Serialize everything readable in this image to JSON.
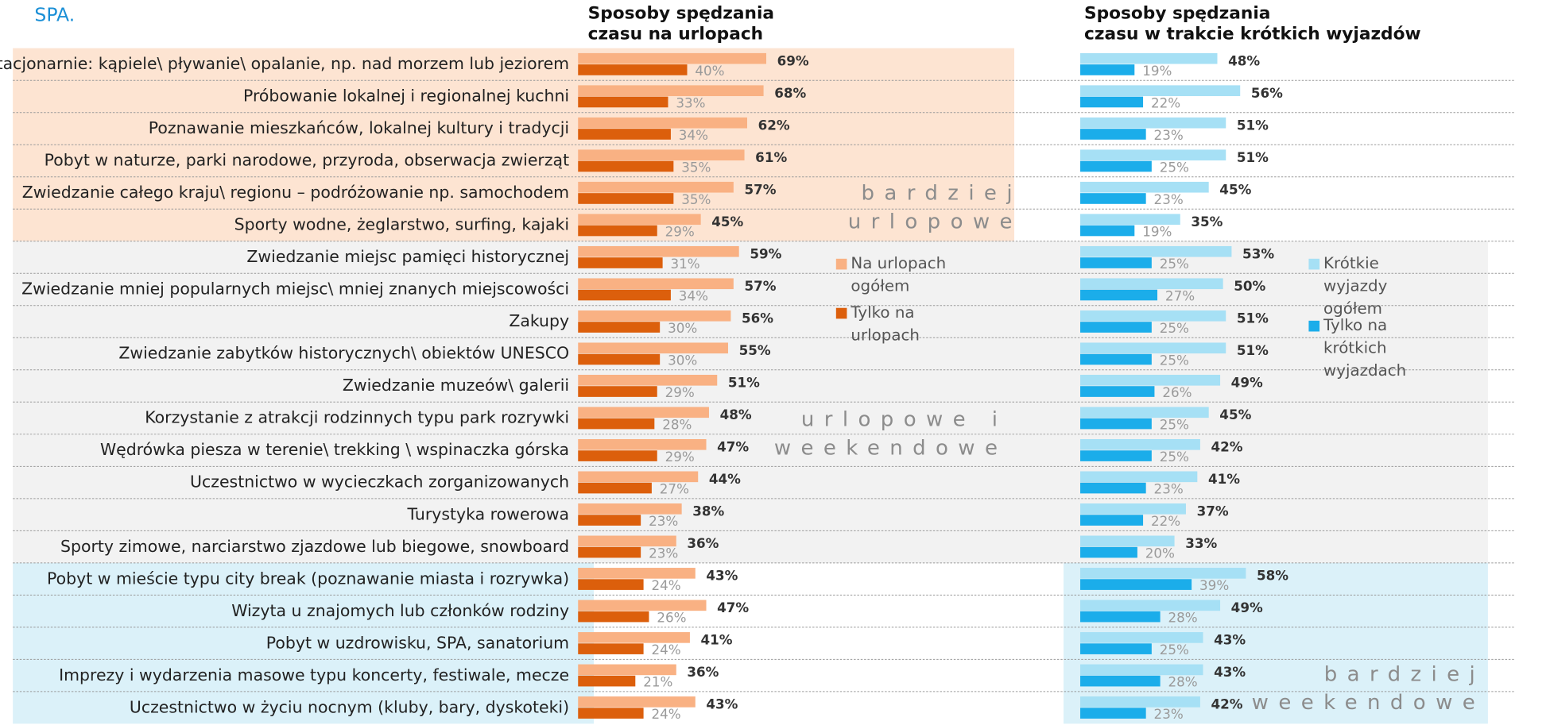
{
  "header": "SPA.",
  "annotations": [
    "bardziej urlopowe",
    "urlopowe i weekendowe",
    "bardziej weekendowe"
  ],
  "chart_data": [
    {
      "type": "bar",
      "orientation": "horizontal",
      "title": "Sposoby spędzania\nczasu na urlopach",
      "xlim": [
        0,
        100
      ],
      "categories": [
        "Stacjonarnie: kąpiele\\ pływanie\\ opalanie, np. nad morzem lub jeziorem",
        "Próbowanie lokalnej i regionalnej kuchni",
        "Poznawanie mieszkańców, lokalnej kultury i tradycji",
        "Pobyt w naturze, parki narodowe, przyroda, obserwacja zwierząt",
        "Zwiedzanie całego kraju\\ regionu – podróżowanie np. samochodem",
        "Sporty wodne, żeglarstwo, surfing, kajaki",
        "Zwiedzanie miejsc pamięci historycznej",
        "Zwiedzanie mniej popularnych miejsc\\ mniej znanych miejscowości",
        "Zakupy",
        "Zwiedzanie zabytków historycznych\\ obiektów UNESCO",
        "Zwiedzanie muzeów\\ galerii",
        "Korzystanie z atrakcji rodzinnych typu park rozrywki",
        "Wędrówka piesza w terenie\\ trekking \\ wspinaczka górska",
        "Uczestnictwo w wycieczkach zorganizowanych",
        "Turystyka rowerowa",
        "Sporty zimowe, narciarstwo zjazdowe lub biegowe, snowboard",
        "Pobyt w mieście typu city break (poznawanie miasta i rozrywka)",
        "Wizyta u znajomych lub członków rodziny",
        "Pobyt w uzdrowisku, SPA, sanatorium",
        "Imprezy i wydarzenia masowe typu koncerty, festiwale, mecze",
        "Uczestnictwo w życiu nocnym (kluby, bary, dyskoteki)"
      ],
      "series": [
        {
          "name": "Na urlopach ogółem",
          "color": "#f9b183",
          "values": [
            69,
            68,
            62,
            61,
            57,
            45,
            59,
            57,
            56,
            55,
            51,
            48,
            47,
            44,
            38,
            36,
            43,
            47,
            41,
            36,
            43
          ],
          "value_labels": [
            "69%",
            "68%",
            "62%",
            "61%",
            "57%",
            "45%",
            "59%",
            "57%",
            "56%",
            "55%",
            "51%",
            "48%",
            "47%",
            "44%",
            "38%",
            "36%",
            "43%",
            "47%",
            "41%",
            "36%",
            "43%"
          ]
        },
        {
          "name": "Tylko na urlopach",
          "color": "#dc5f0c",
          "values": [
            40,
            33,
            34,
            35,
            35,
            29,
            31,
            34,
            30,
            30,
            29,
            28,
            29,
            27,
            23,
            23,
            24,
            26,
            24,
            21,
            24
          ],
          "value_labels": [
            "40%",
            "33%",
            "34%",
            "35%",
            "35%",
            "29%",
            "31%",
            "34%",
            "30%",
            "30%",
            "29%",
            "28%",
            "29%",
            "27%",
            "23%",
            "23%",
            "24%",
            "26%",
            "24%",
            "21%",
            "24%"
          ]
        }
      ]
    },
    {
      "type": "bar",
      "orientation": "horizontal",
      "title": "Sposoby spędzania\nczasu w trakcie krótkich wyjazdów",
      "xlim": [
        0,
        100
      ],
      "series": [
        {
          "name": "Krótkie wyjazdy ogółem",
          "color": "#a6e0f5",
          "values": [
            48,
            56,
            51,
            51,
            45,
            35,
            53,
            50,
            51,
            51,
            49,
            45,
            42,
            41,
            37,
            33,
            58,
            49,
            43,
            43,
            42
          ],
          "value_labels": [
            "48%",
            "56%",
            "51%",
            "51%",
            "45%",
            "35%",
            "53%",
            "50%",
            "51%",
            "51%",
            "49%",
            "45%",
            "42%",
            "41%",
            "37%",
            "33%",
            "58%",
            "49%",
            "43%",
            "43%",
            "42%"
          ]
        },
        {
          "name": "Tylko na krótkich wyjazdach",
          "color": "#1badea",
          "values": [
            19,
            22,
            23,
            25,
            23,
            19,
            25,
            27,
            25,
            25,
            26,
            25,
            25,
            23,
            22,
            20,
            39,
            28,
            25,
            28,
            23
          ],
          "value_labels": [
            "19%",
            "22%",
            "23%",
            "25%",
            "23%",
            "19%",
            "25%",
            "27%",
            "25%",
            "25%",
            "26%",
            "25%",
            "25%",
            "23%",
            "22%",
            "20%",
            "39%",
            "28%",
            "25%",
            "28%",
            "23%"
          ]
        }
      ]
    }
  ]
}
